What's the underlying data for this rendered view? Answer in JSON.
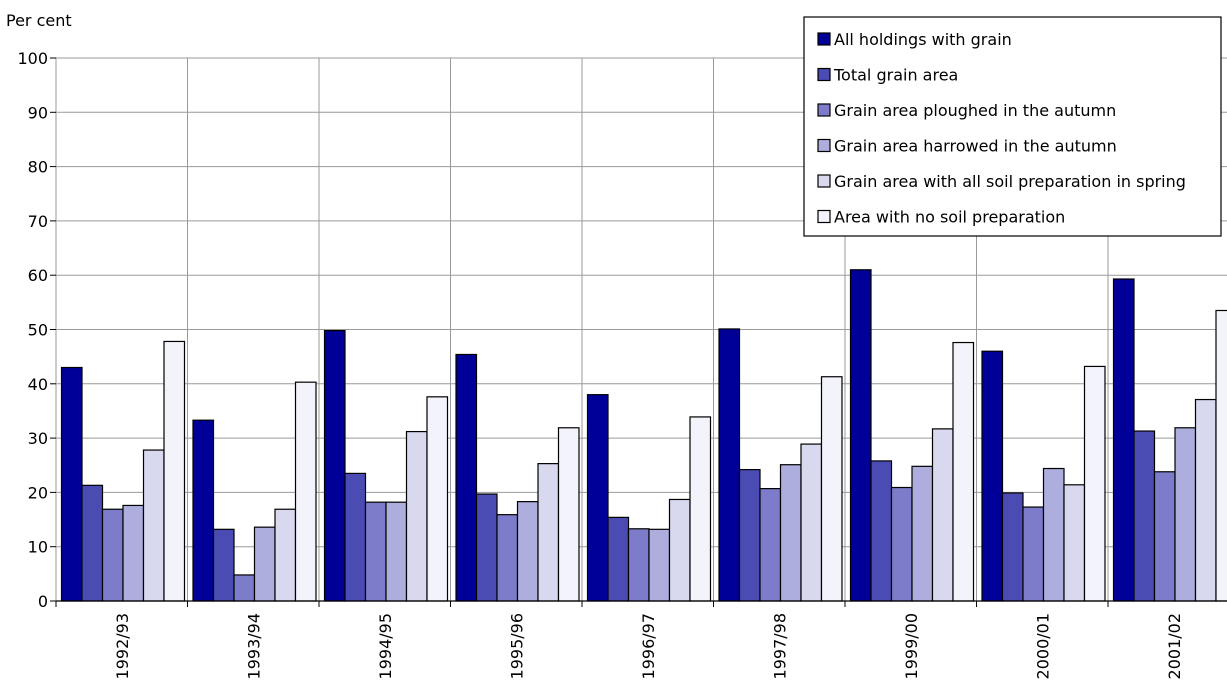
{
  "chart_data": {
    "type": "bar",
    "ylabel": "Per cent",
    "ylim": [
      0,
      100
    ],
    "yticks": [
      "0",
      "10",
      "20",
      "30",
      "40",
      "50",
      "60",
      "70",
      "80",
      "90",
      "100"
    ],
    "grid": true,
    "legend_position": "top-right",
    "categories": [
      "1992/93",
      "1993/94",
      "1994/95",
      "1995/96",
      "1996/97",
      "1997/98",
      "1999/00",
      "2000/01",
      "2001/02"
    ],
    "series": [
      {
        "name": "All holdings with grain",
        "color": "#000099",
        "values": [
          43,
          33.3,
          49.8,
          45.4,
          38,
          50.1,
          61,
          46,
          59.3
        ]
      },
      {
        "name": "Total grain area",
        "color": "#4b4bb4",
        "values": [
          21.3,
          13.2,
          23.5,
          19.7,
          15.4,
          24.2,
          25.8,
          19.9,
          31.3
        ]
      },
      {
        "name": "Grain area ploughed in the autumn",
        "color": "#7c7cca",
        "values": [
          16.9,
          4.8,
          18.2,
          15.9,
          13.3,
          20.7,
          20.9,
          17.3,
          23.8
        ]
      },
      {
        "name": "Grain area harrowed in the autumn",
        "color": "#adadde",
        "values": [
          17.6,
          13.6,
          18.2,
          18.3,
          13.2,
          25.1,
          24.8,
          24.4,
          31.9
        ]
      },
      {
        "name": "Grain area with all soil preparation in spring",
        "color": "#d8d8ef",
        "values": [
          27.8,
          16.9,
          31.2,
          25.3,
          18.7,
          28.9,
          31.7,
          21.4,
          37.1
        ]
      },
      {
        "name": "Area with no soil preparation",
        "color": "#f3f3fb",
        "values": [
          47.8,
          40.3,
          37.6,
          31.9,
          33.9,
          41.3,
          47.6,
          43.2,
          53.5
        ]
      }
    ]
  }
}
